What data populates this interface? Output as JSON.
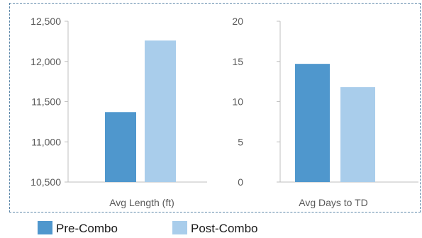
{
  "colors": {
    "pre_combo": "#4f97cd",
    "post_combo": "#a9cdeb",
    "axis": "#bfbfbf",
    "frame": "#5b86a8"
  },
  "legend": {
    "placement": "bottom-left",
    "items": [
      {
        "label": "Pre-Combo",
        "color": "#4f97cd"
      },
      {
        "label": "Post-Combo",
        "color": "#a9cdeb"
      }
    ]
  },
  "chart_data": [
    {
      "type": "bar",
      "categories": [
        "Avg Length (ft)"
      ],
      "series": [
        {
          "name": "Pre-Combo",
          "values": [
            11370
          ]
        },
        {
          "name": "Post-Combo",
          "values": [
            12260
          ]
        }
      ],
      "yticks": [
        "10,500",
        "11,000",
        "11,500",
        "12,000",
        "12,500"
      ],
      "ylim": [
        10500,
        12500
      ],
      "grid": false
    },
    {
      "type": "bar",
      "categories": [
        "Avg Days to TD"
      ],
      "series": [
        {
          "name": "Pre-Combo",
          "values": [
            14.7
          ]
        },
        {
          "name": "Post-Combo",
          "values": [
            11.8
          ]
        }
      ],
      "yticks": [
        "0",
        "5",
        "10",
        "15",
        "20"
      ],
      "ylim": [
        0,
        20
      ],
      "grid": false
    }
  ]
}
